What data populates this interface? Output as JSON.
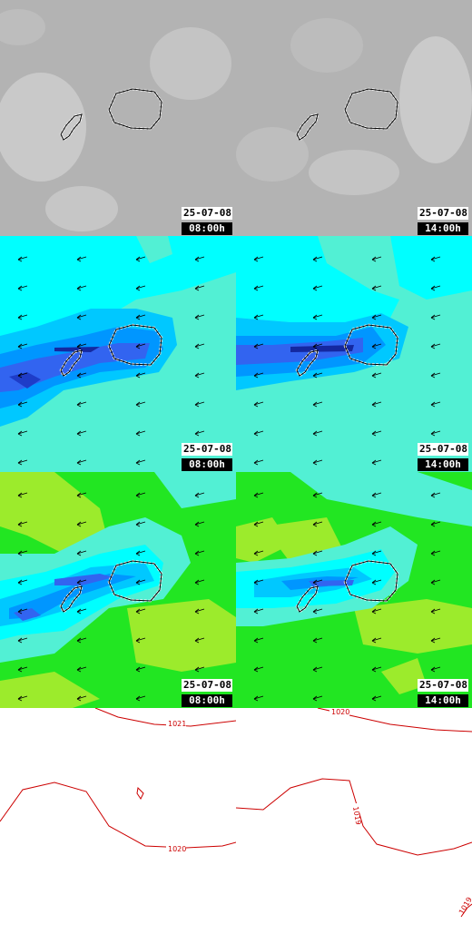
{
  "panels": [
    {
      "row": "cloud",
      "col": 0,
      "date": "25-07-08",
      "time": "08:00h"
    },
    {
      "row": "cloud",
      "col": 1,
      "date": "25-07-08",
      "time": "14:00h"
    },
    {
      "row": "wind",
      "col": 0,
      "date": "25-07-08",
      "time": "08:00h"
    },
    {
      "row": "wind",
      "col": 1,
      "date": "25-07-08",
      "time": "14:00h"
    },
    {
      "row": "gust",
      "col": 0,
      "date": "25-07-08",
      "time": "08:00h"
    },
    {
      "row": "gust",
      "col": 1,
      "date": "25-07-08",
      "time": "14:00h"
    }
  ],
  "isobars": {
    "left": [
      "1021",
      "1020"
    ],
    "right": [
      "1020",
      "1019",
      "1019"
    ]
  },
  "colors": {
    "cloud_bg": "#b4b4b4",
    "wind_bg": "#52f0d4",
    "gust_bg": "#22e622",
    "isobar": "#cc0000",
    "coast": "#ffffff"
  }
}
